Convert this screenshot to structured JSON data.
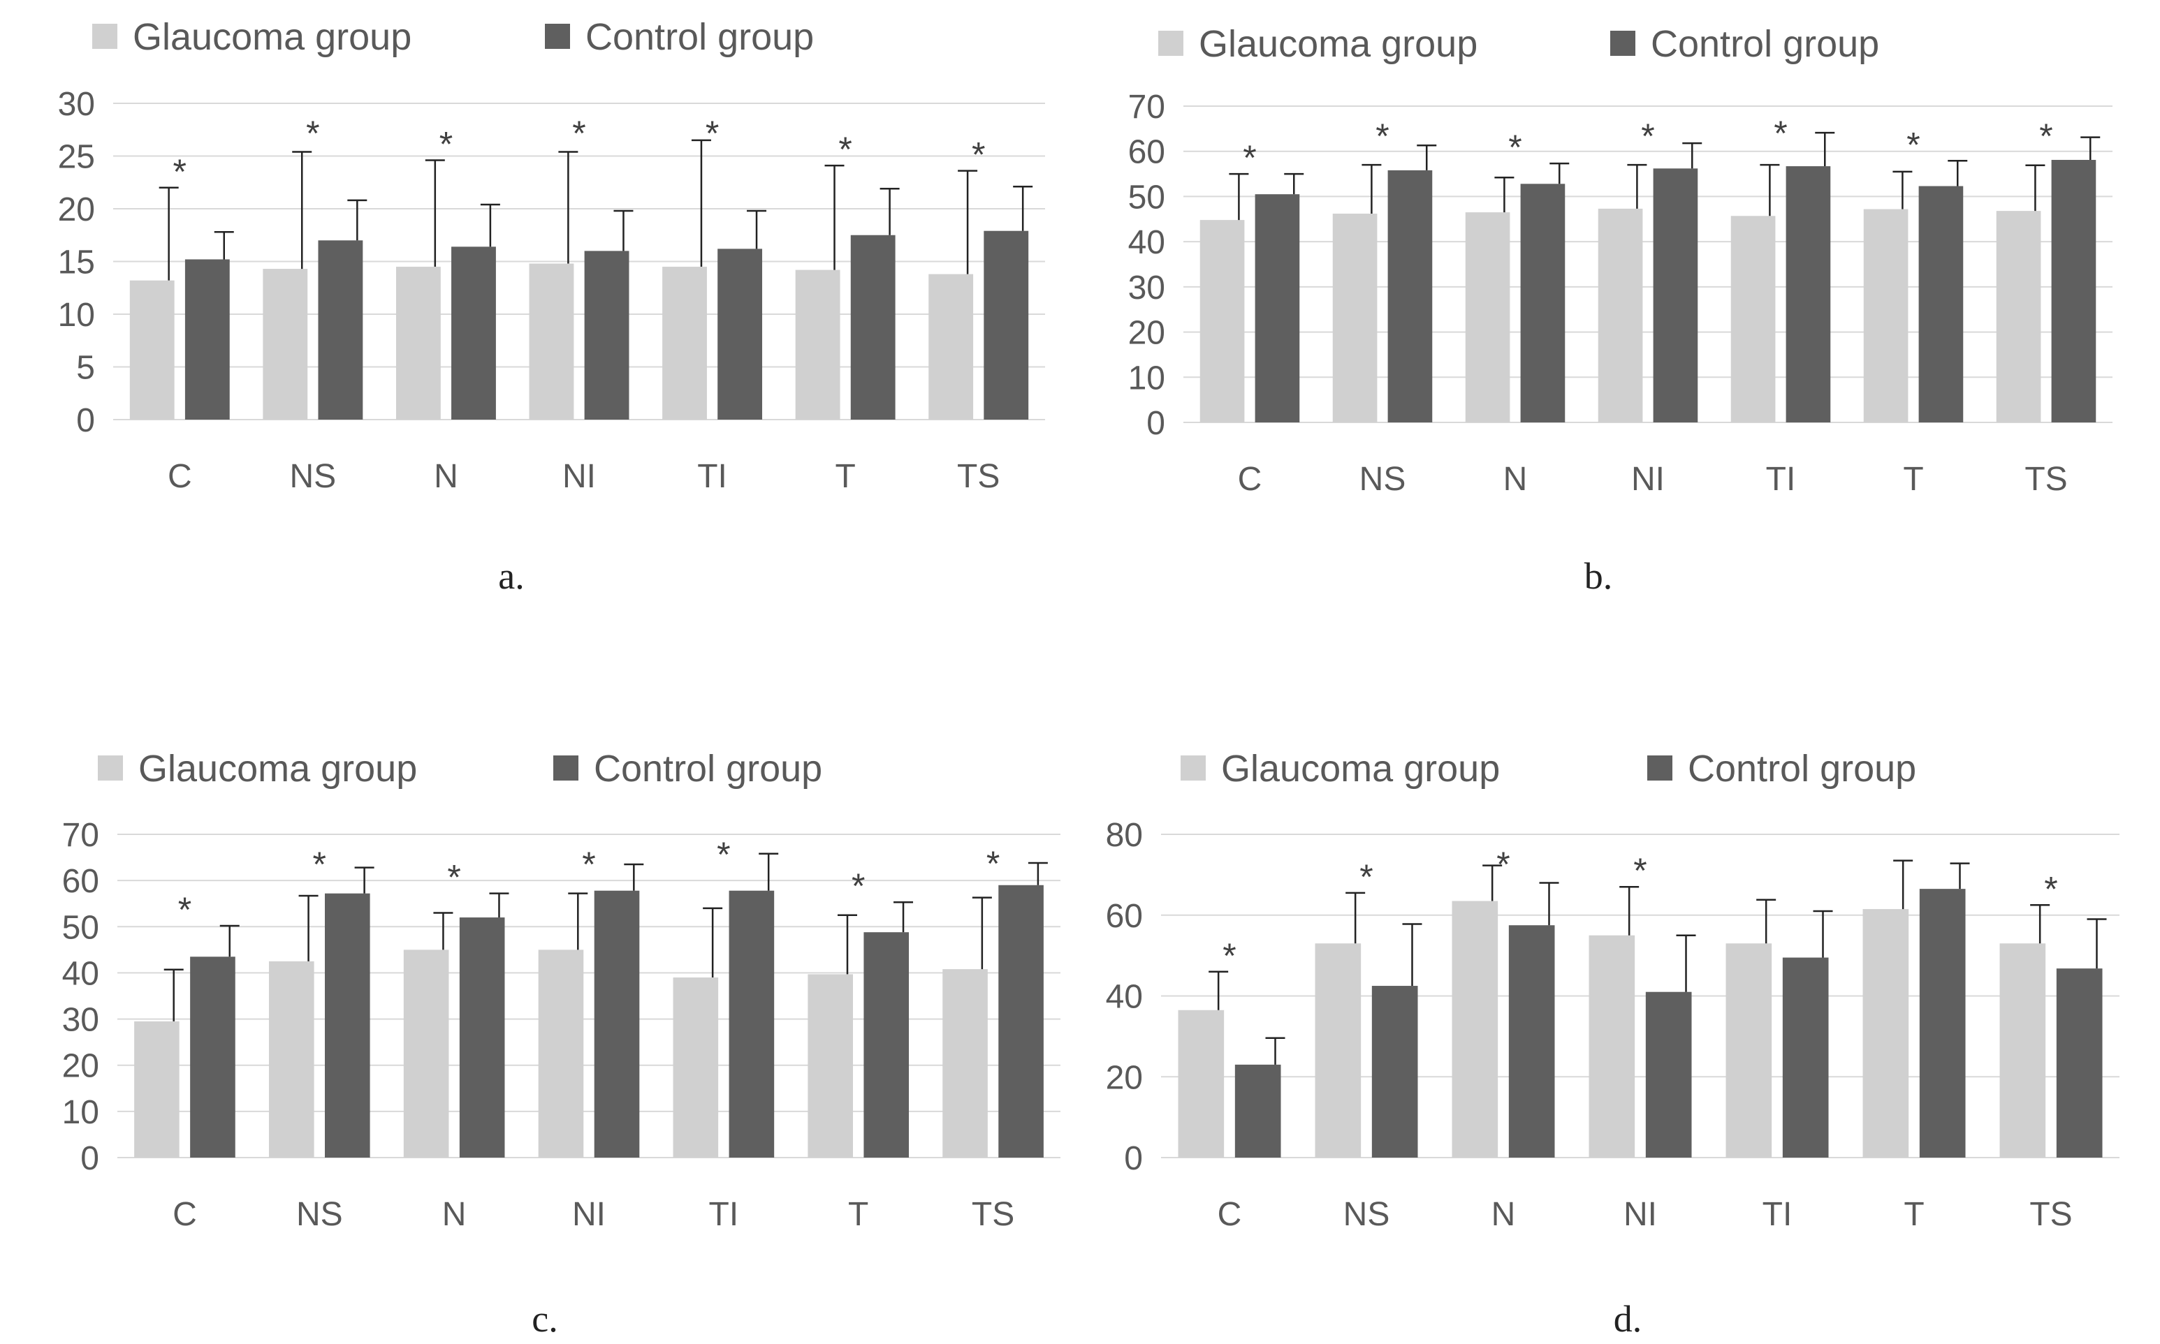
{
  "colors": {
    "glaucoma": "#d0d0d0",
    "control": "#5f5f5f",
    "grid": "#d9d9d9",
    "error_bar": "#222222"
  },
  "chart_data": [
    {
      "panel": "a.",
      "type": "bar",
      "categories": [
        "C",
        "NS",
        "N",
        "NI",
        "TI",
        "T",
        "TS"
      ],
      "series": [
        {
          "name": "Glaucoma group",
          "values": [
            13.2,
            14.3,
            14.5,
            14.8,
            14.5,
            14.2,
            13.8
          ],
          "error": [
            8.8,
            11.1,
            10.1,
            10.6,
            12.0,
            9.9,
            9.8
          ]
        },
        {
          "name": "Control group",
          "values": [
            15.2,
            17.0,
            16.4,
            16.0,
            16.2,
            17.5,
            17.9
          ],
          "error": [
            2.6,
            3.8,
            4.0,
            3.8,
            3.6,
            4.4,
            4.2
          ]
        }
      ],
      "significant": [
        true,
        true,
        true,
        true,
        true,
        true,
        true
      ],
      "ylim": [
        0,
        30
      ],
      "yticks": [
        0,
        5,
        10,
        15,
        20,
        25,
        30
      ],
      "grid": true,
      "legend": "top-left"
    },
    {
      "panel": "b.",
      "type": "bar",
      "categories": [
        "C",
        "NS",
        "N",
        "NI",
        "TI",
        "T",
        "TS"
      ],
      "series": [
        {
          "name": "Glaucoma group",
          "values": [
            44.8,
            46.2,
            46.5,
            47.3,
            45.7,
            47.2,
            46.8
          ],
          "error": [
            10.2,
            10.8,
            7.7,
            9.7,
            11.3,
            8.3,
            10.1
          ]
        },
        {
          "name": "Control group",
          "values": [
            50.5,
            55.8,
            52.8,
            56.2,
            56.7,
            52.3,
            58.1
          ],
          "error": [
            4.5,
            5.5,
            4.5,
            5.6,
            7.4,
            5.6,
            5.0
          ]
        }
      ],
      "significant": [
        true,
        true,
        true,
        true,
        true,
        true,
        true
      ],
      "ylim": [
        0,
        70
      ],
      "yticks": [
        0,
        10,
        20,
        30,
        40,
        50,
        60,
        70
      ],
      "grid": true,
      "legend": "top-left"
    },
    {
      "panel": "c.",
      "type": "bar",
      "categories": [
        "C",
        "NS",
        "N",
        "NI",
        "TI",
        "T",
        "TS"
      ],
      "series": [
        {
          "name": "Glaucoma group",
          "values": [
            29.5,
            42.5,
            45.0,
            45.0,
            39.0,
            39.7,
            40.8
          ],
          "error": [
            11.2,
            14.2,
            8.0,
            12.2,
            15.0,
            12.8,
            15.5
          ]
        },
        {
          "name": "Control group",
          "values": [
            43.5,
            57.2,
            52.0,
            57.8,
            57.8,
            48.8,
            59.0
          ],
          "error": [
            6.7,
            5.6,
            5.2,
            5.7,
            8.0,
            6.5,
            4.8
          ]
        }
      ],
      "significant": [
        true,
        true,
        true,
        true,
        true,
        true,
        true
      ],
      "ylim": [
        0,
        70
      ],
      "yticks": [
        0,
        10,
        20,
        30,
        40,
        50,
        60,
        70
      ],
      "grid": true,
      "legend": "top-left"
    },
    {
      "panel": "d.",
      "type": "bar",
      "categories": [
        "C",
        "NS",
        "N",
        "NI",
        "TI",
        "T",
        "TS"
      ],
      "series": [
        {
          "name": "Glaucoma group",
          "values": [
            36.5,
            53.0,
            63.5,
            55.0,
            53.0,
            61.5,
            53.0
          ],
          "error": [
            9.5,
            12.5,
            8.8,
            12.0,
            10.8,
            12.0,
            9.5
          ]
        },
        {
          "name": "Control group",
          "values": [
            23.0,
            42.5,
            57.5,
            41.0,
            49.5,
            66.5,
            46.8
          ],
          "error": [
            6.6,
            15.3,
            10.5,
            14.0,
            11.5,
            6.3,
            12.2
          ]
        }
      ],
      "significant": [
        true,
        true,
        true,
        true,
        false,
        false,
        true
      ],
      "ylim": [
        0,
        80
      ],
      "yticks": [
        0,
        20,
        40,
        60,
        80
      ],
      "grid": true,
      "legend": "top-left"
    }
  ]
}
